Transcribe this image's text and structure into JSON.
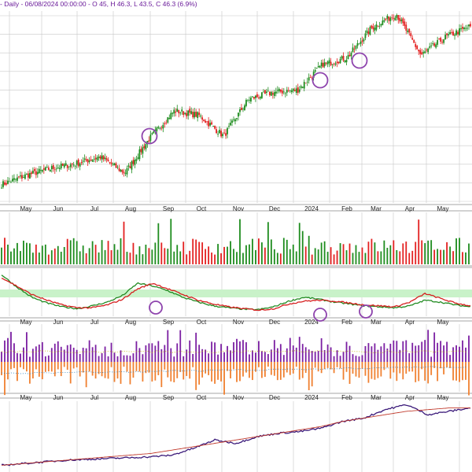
{
  "header": {
    "text": "- Daily - 06/08/2024 00:00:00 -  O 45, H 46.3, L 43.5, C 46.3  (6.9%)"
  },
  "colors": {
    "up": "#1e8c1e",
    "down": "#e32020",
    "grid": "#c8c8c8",
    "marker": "#8e44ad",
    "osc_fast": "#228b22",
    "osc_slow": "#d62020",
    "band_fill": "#c9f2c9",
    "flow_pos": "#7b1fa2",
    "flow_neg": "#f08030",
    "price_line": "#3b1a7a",
    "ma_line": "#c0392b"
  },
  "chart_data": [
    {
      "type": "candlestick",
      "panel": "price",
      "x_tick_labels": [
        "May",
        "Jun",
        "Jul",
        "Aug",
        "Sep",
        "Oct",
        "Nov",
        "Dec",
        "2024",
        "Feb",
        "Mar",
        "Apr",
        "May"
      ],
      "close_path": [
        {
          "month": "Apr",
          "close": 12.0
        },
        {
          "month": "May",
          "close": 14.0
        },
        {
          "month": "Jun",
          "close": 15.5
        },
        {
          "month": "Jul",
          "close": 16.5
        },
        {
          "month": "Aug",
          "close": 18.0
        },
        {
          "month": "Aug",
          "close": 14.5
        },
        {
          "month": "Sep",
          "close": 22.0
        },
        {
          "month": "Sep",
          "close": 28.0
        },
        {
          "month": "Oct",
          "close": 27.0
        },
        {
          "month": "Oct",
          "close": 22.5
        },
        {
          "month": "Nov",
          "close": 30.5
        },
        {
          "month": "Dec",
          "close": 32.0
        },
        {
          "month": "2024",
          "close": 32.5
        },
        {
          "month": "2024",
          "close": 38.0
        },
        {
          "month": "Feb",
          "close": 39.5
        },
        {
          "month": "Mar",
          "close": 46.0
        },
        {
          "month": "Apr",
          "close": 49.0
        },
        {
          "month": "Apr",
          "close": 40.0
        },
        {
          "month": "May",
          "close": 44.0
        },
        {
          "month": "May",
          "close": 46.3
        }
      ],
      "last_bar": {
        "date": "06/08/2024",
        "open": 45,
        "high": 46.3,
        "low": 43.5,
        "close": 46.3,
        "change_pct": 6.9
      },
      "markers": 3
    },
    {
      "type": "bar",
      "panel": "volume",
      "note": "daily volume bars colored by up/down day"
    },
    {
      "type": "line",
      "panel": "oscillator",
      "series": [
        {
          "values": [
            88,
            62,
            40,
            28,
            20,
            16,
            22,
            30,
            44,
            70,
            64,
            54,
            40,
            30,
            22,
            18,
            15,
            14,
            20,
            32,
            40,
            36,
            30,
            26,
            22,
            20,
            18,
            22,
            34,
            30,
            24,
            20
          ]
        },
        {
          "values": [
            82,
            64,
            46,
            34,
            24,
            18,
            18,
            24,
            36,
            58,
            70,
            58,
            46,
            34,
            26,
            20,
            16,
            13,
            16,
            26,
            32,
            34,
            32,
            28,
            24,
            22,
            20,
            30,
            48,
            38,
            28,
            22
          ]
        }
      ],
      "markers": 3
    },
    {
      "type": "bar",
      "panel": "flow",
      "note": "positive (purple) and negative (orange) flow bars around a zero line"
    },
    {
      "type": "line",
      "panel": "trend",
      "series": [
        {
          "values": [
            12,
            13,
            14,
            15,
            15.5,
            16,
            16.5,
            17,
            18,
            22,
            27,
            25,
            29,
            31,
            32,
            34,
            38,
            40,
            45,
            48,
            42,
            44,
            46
          ]
        },
        {
          "values": [
            12,
            13,
            14,
            15,
            16,
            17,
            18,
            19,
            21,
            23,
            25,
            27,
            29,
            31,
            33,
            35,
            38,
            40,
            42,
            44,
            45,
            46,
            46
          ]
        }
      ]
    }
  ]
}
